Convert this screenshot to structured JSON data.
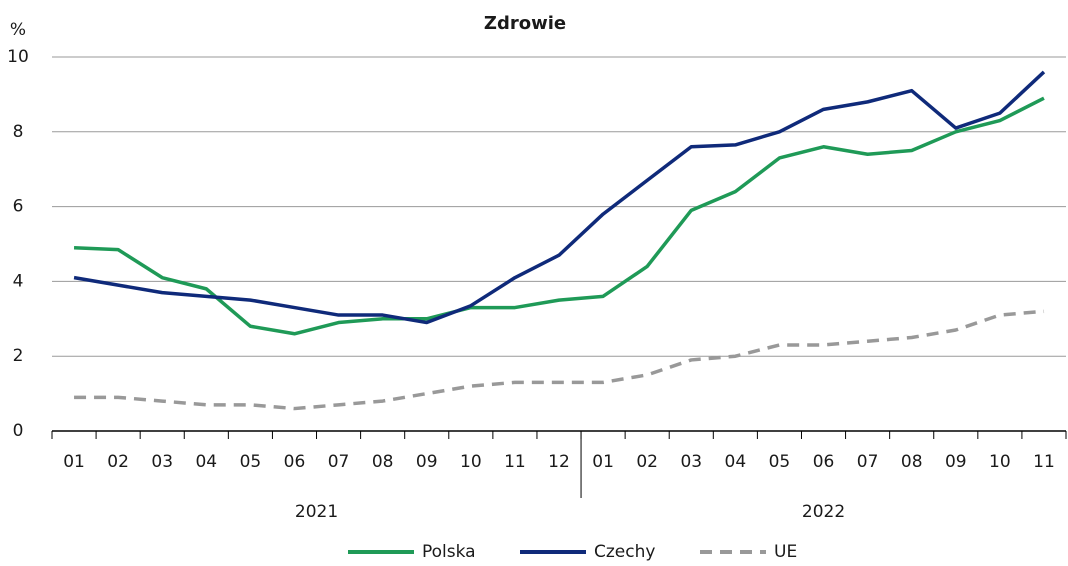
{
  "chart_data": {
    "type": "line",
    "title": "Zdrowie",
    "y_label": "%",
    "categories": [
      "01",
      "02",
      "03",
      "04",
      "05",
      "06",
      "07",
      "08",
      "09",
      "10",
      "11",
      "12",
      "01",
      "02",
      "03",
      "04",
      "05",
      "06",
      "07",
      "08",
      "09",
      "10",
      "11"
    ],
    "years": [
      "2021",
      "2022"
    ],
    "series": [
      {
        "name": "Polska",
        "color": "#1f9a57",
        "dash": false,
        "values": [
          4.9,
          4.85,
          4.1,
          3.8,
          2.8,
          2.6,
          2.9,
          3.0,
          3.0,
          3.3,
          3.3,
          3.5,
          3.6,
          4.4,
          5.9,
          6.4,
          7.3,
          7.6,
          7.4,
          7.5,
          8.0,
          8.3,
          8.9
        ]
      },
      {
        "name": "Czechy",
        "color": "#0f2a7a",
        "dash": false,
        "values": [
          4.1,
          3.9,
          3.7,
          3.6,
          3.5,
          3.3,
          3.1,
          3.1,
          2.9,
          3.35,
          4.1,
          4.7,
          5.8,
          6.7,
          7.6,
          7.65,
          8.0,
          8.6,
          8.8,
          9.1,
          8.1,
          8.5,
          9.6
        ]
      },
      {
        "name": "UE",
        "color": "#999999",
        "dash": true,
        "values": [
          0.9,
          0.9,
          0.8,
          0.7,
          0.7,
          0.6,
          0.7,
          0.8,
          1.0,
          1.2,
          1.3,
          1.3,
          1.3,
          1.5,
          1.9,
          2.0,
          2.3,
          2.3,
          2.4,
          2.5,
          2.7,
          3.1,
          3.2
        ]
      }
    ],
    "ylim": [
      0,
      10
    ],
    "yticks": [
      0,
      2,
      4,
      6,
      8,
      10
    ],
    "grid": true
  }
}
